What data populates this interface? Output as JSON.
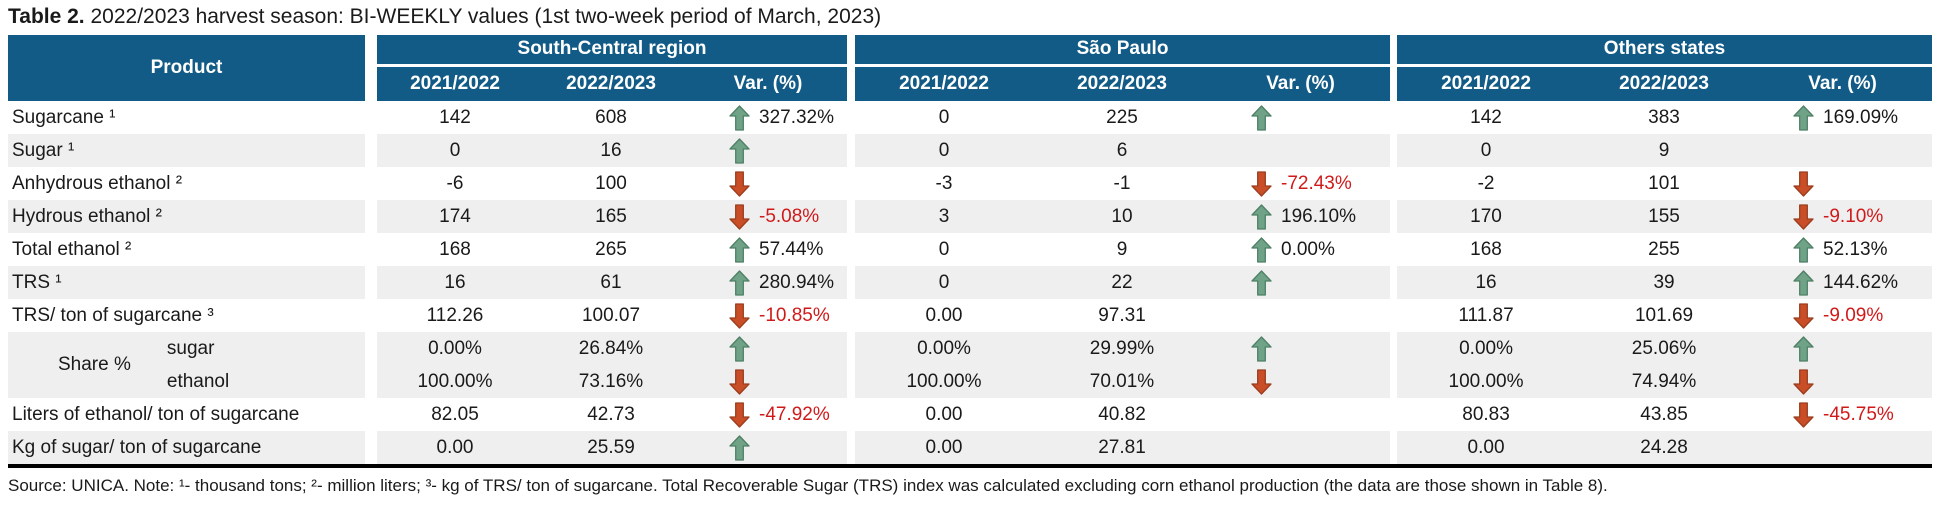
{
  "title": {
    "label": "Table 2.",
    "text": " 2022/2023 harvest season: BI-WEEKLY values (1st two-week period of March, 2023)"
  },
  "table": {
    "product_header": "Product",
    "share_group_label": "Share %",
    "regions": [
      {
        "name": "South-Central region"
      },
      {
        "name": "São Paulo"
      },
      {
        "name": "Others states"
      }
    ],
    "sub_headers": [
      "2021/2022",
      "2022/2023",
      "Var. (%)"
    ],
    "rows": [
      {
        "product": "Sugarcane ¹",
        "shade": "plain",
        "regions": [
          {
            "y1": "142",
            "y2": "608",
            "trend": "up",
            "var": "327.32%"
          },
          {
            "y1": "0",
            "y2": "225",
            "trend": "up",
            "var": ""
          },
          {
            "y1": "142",
            "y2": "383",
            "trend": "up",
            "var": "169.09%"
          }
        ]
      },
      {
        "product": "Sugar ¹",
        "shade": "alt",
        "regions": [
          {
            "y1": "0",
            "y2": "16",
            "trend": "up",
            "var": ""
          },
          {
            "y1": "0",
            "y2": "6",
            "trend": "",
            "var": ""
          },
          {
            "y1": "0",
            "y2": "9",
            "trend": "",
            "var": ""
          }
        ]
      },
      {
        "product": "Anhydrous ethanol ²",
        "shade": "plain",
        "regions": [
          {
            "y1": "-6",
            "y2": "100",
            "trend": "down",
            "var": ""
          },
          {
            "y1": "-3",
            "y2": "-1",
            "trend": "down",
            "var": "-72.43%"
          },
          {
            "y1": "-2",
            "y2": "101",
            "trend": "down",
            "var": ""
          }
        ]
      },
      {
        "product": "Hydrous ethanol ²",
        "shade": "alt",
        "regions": [
          {
            "y1": "174",
            "y2": "165",
            "trend": "down",
            "var": "-5.08%"
          },
          {
            "y1": "3",
            "y2": "10",
            "trend": "up",
            "var": "196.10%"
          },
          {
            "y1": "170",
            "y2": "155",
            "trend": "down",
            "var": "-9.10%"
          }
        ]
      },
      {
        "product": "Total ethanol ²",
        "shade": "plain",
        "regions": [
          {
            "y1": "168",
            "y2": "265",
            "trend": "up",
            "var": "57.44%"
          },
          {
            "y1": "0",
            "y2": "9",
            "trend": "up",
            "var": "0.00%"
          },
          {
            "y1": "168",
            "y2": "255",
            "trend": "up",
            "var": "52.13%"
          }
        ]
      },
      {
        "product": "TRS ¹",
        "shade": "alt",
        "regions": [
          {
            "y1": "16",
            "y2": "61",
            "trend": "up",
            "var": "280.94%"
          },
          {
            "y1": "0",
            "y2": "22",
            "trend": "up",
            "var": ""
          },
          {
            "y1": "16",
            "y2": "39",
            "trend": "up",
            "var": "144.62%"
          }
        ]
      },
      {
        "product": "TRS/ ton of sugarcane ³",
        "shade": "plain",
        "regions": [
          {
            "y1": "112.26",
            "y2": "100.07",
            "trend": "down",
            "var": "-10.85%"
          },
          {
            "y1": "0.00",
            "y2": "97.31",
            "trend": "",
            "var": ""
          },
          {
            "y1": "111.87",
            "y2": "101.69",
            "trend": "down",
            "var": "-9.09%"
          }
        ]
      },
      {
        "product": "sugar",
        "shade": "alt",
        "group": "Share %",
        "regions": [
          {
            "y1": "0.00%",
            "y2": "26.84%",
            "trend": "up",
            "var": ""
          },
          {
            "y1": "0.00%",
            "y2": "29.99%",
            "trend": "up",
            "var": ""
          },
          {
            "y1": "0.00%",
            "y2": "25.06%",
            "trend": "up",
            "var": ""
          }
        ]
      },
      {
        "product": "ethanol",
        "shade": "alt",
        "group_member": true,
        "regions": [
          {
            "y1": "100.00%",
            "y2": "73.16%",
            "trend": "down",
            "var": ""
          },
          {
            "y1": "100.00%",
            "y2": "70.01%",
            "trend": "down",
            "var": ""
          },
          {
            "y1": "100.00%",
            "y2": "74.94%",
            "trend": "down",
            "var": ""
          }
        ]
      },
      {
        "product": "Liters of ethanol/ ton of sugarcane",
        "shade": "plain",
        "regions": [
          {
            "y1": "82.05",
            "y2": "42.73",
            "trend": "down",
            "var": "-47.92%"
          },
          {
            "y1": "0.00",
            "y2": "40.82",
            "trend": "",
            "var": ""
          },
          {
            "y1": "80.83",
            "y2": "43.85",
            "trend": "down",
            "var": "-45.75%"
          }
        ]
      },
      {
        "product": "Kg of sugar/ ton of sugarcane",
        "shade": "alt",
        "regions": [
          {
            "y1": "0.00",
            "y2": "25.59",
            "trend": "up",
            "var": ""
          },
          {
            "y1": "0.00",
            "y2": "27.81",
            "trend": "",
            "var": ""
          },
          {
            "y1": "0.00",
            "y2": "24.28",
            "trend": "",
            "var": ""
          }
        ]
      }
    ]
  },
  "footer": "Source: UNICA. Note: ¹- thousand tons; ²- million liters; ³- kg of TRS/ ton of sugarcane. Total Recoverable Sugar (TRS) index was calculated excluding corn ethanol production (the data are those shown in Table 8).",
  "colors": {
    "header_blue": "#125B86",
    "row_alt": "#EFEFEF",
    "up_arrow_fill": "#6FA287",
    "up_arrow_border": "#4E8066",
    "down_arrow_fill": "#C94E27",
    "down_arrow_border": "#9B3D1E",
    "negative_text": "#D01A1A"
  }
}
